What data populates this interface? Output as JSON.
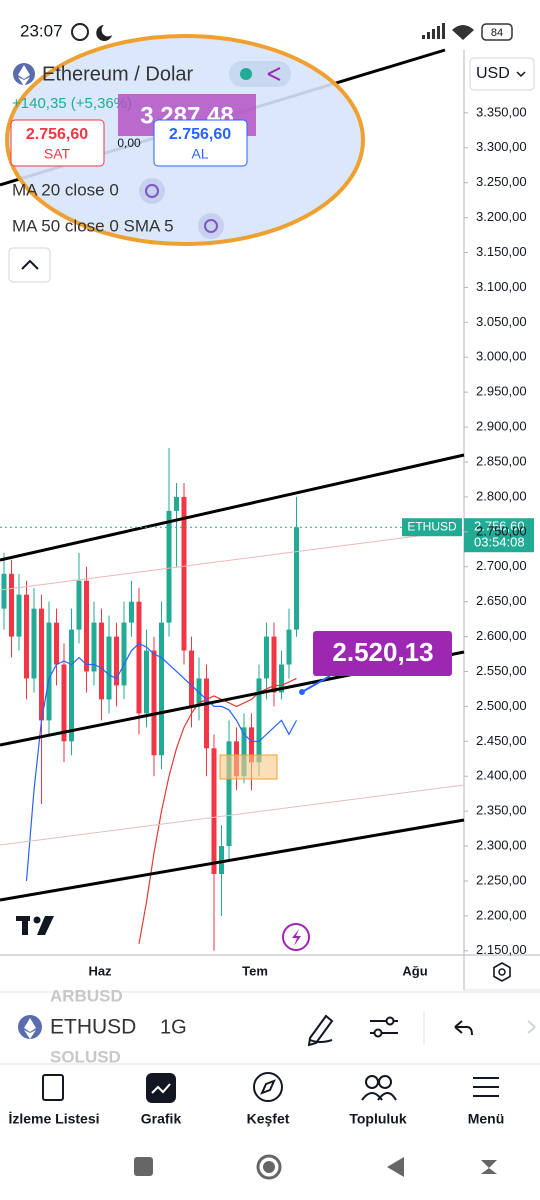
{
  "status": {
    "time": "23:07",
    "battery": "84"
  },
  "header": {
    "symbol_title": "Ethereum / Dolar",
    "change": "+140,35 (+5,36%)",
    "sell_price": "2.756,60",
    "sell_label": "SAT",
    "buy_price": "2.756,60",
    "buy_label": "AL",
    "spread": "0,00",
    "overlay_price": "3.287,48",
    "indicators": [
      "MA 20 close 0",
      "MA 50 close 0 SMA 5"
    ]
  },
  "currency": "USD",
  "chart_data": {
    "type": "candlestick",
    "ylim": [
      2144,
      3440
    ],
    "yticks": [
      {
        "value": 3350,
        "label": "3.350,00"
      },
      {
        "value": 3300,
        "label": "3.300,00"
      },
      {
        "value": 3250,
        "label": "3.250,00"
      },
      {
        "value": 3200,
        "label": "3.200,00"
      },
      {
        "value": 3150,
        "label": "3.150,00"
      },
      {
        "value": 3100,
        "label": "3.100,00"
      },
      {
        "value": 3050,
        "label": "3.050,00"
      },
      {
        "value": 3000,
        "label": "3.000,00"
      },
      {
        "value": 2950,
        "label": "2.950,00"
      },
      {
        "value": 2900,
        "label": "2.900,00"
      },
      {
        "value": 2850,
        "label": "2.850,00"
      },
      {
        "value": 2800,
        "label": "2.800,00"
      },
      {
        "value": 2750,
        "label": "2.750,00"
      },
      {
        "value": 2700,
        "label": "2.700,00"
      },
      {
        "value": 2650,
        "label": "2.650,00"
      },
      {
        "value": 2600,
        "label": "2.600,00"
      },
      {
        "value": 2550,
        "label": "2.550,00"
      },
      {
        "value": 2500,
        "label": "2.500,00"
      },
      {
        "value": 2450,
        "label": "2.450,00"
      },
      {
        "value": 2400,
        "label": "2.400,00"
      },
      {
        "value": 2350,
        "label": "2.350,00"
      },
      {
        "value": 2300,
        "label": "2.300,00"
      },
      {
        "value": 2250,
        "label": "2.250,00"
      },
      {
        "value": 2200,
        "label": "2.200,00"
      },
      {
        "value": 2150,
        "label": "2.150,00"
      }
    ],
    "up_color": "#22ab94",
    "down_color": "#f23645",
    "open": [
      2640,
      2690,
      2600,
      2660,
      2540,
      2640,
      2480,
      2620,
      2560,
      2450,
      2610,
      2680,
      2550,
      2620,
      2510,
      2600,
      2530,
      2620,
      2650,
      2490,
      2580,
      2430,
      2620,
      2780,
      2800,
      2580,
      2500,
      2540,
      2440,
      2260,
      2300,
      2450,
      2400,
      2470,
      2420,
      2540,
      2600,
      2520,
      2560,
      2610
    ],
    "high": [
      2720,
      2710,
      2690,
      2680,
      2670,
      2660,
      2650,
      2640,
      2590,
      2640,
      2720,
      2700,
      2650,
      2640,
      2630,
      2620,
      2650,
      2680,
      2670,
      2610,
      2600,
      2650,
      2870,
      2820,
      2820,
      2600,
      2570,
      2560,
      2460,
      2330,
      2480,
      2470,
      2490,
      2490,
      2560,
      2620,
      2620,
      2580,
      2640,
      2800
    ],
    "low": [
      2610,
      2570,
      2580,
      2510,
      2520,
      2360,
      2460,
      2530,
      2420,
      2430,
      2590,
      2520,
      2530,
      2480,
      2490,
      2500,
      2510,
      2600,
      2460,
      2470,
      2400,
      2410,
      2600,
      2700,
      2560,
      2470,
      2480,
      2400,
      2150,
      2200,
      2280,
      2380,
      2390,
      2380,
      2400,
      2510,
      2500,
      2510,
      2540,
      2600
    ],
    "close": [
      2690,
      2600,
      2660,
      2540,
      2640,
      2480,
      2620,
      2560,
      2450,
      2610,
      2680,
      2550,
      2620,
      2510,
      2600,
      2530,
      2620,
      2650,
      2490,
      2580,
      2430,
      2620,
      2780,
      2800,
      2580,
      2500,
      2540,
      2440,
      2260,
      2300,
      2450,
      2400,
      2470,
      2420,
      2540,
      2600,
      2520,
      2560,
      2610,
      2756.6
    ],
    "ma20": {
      "color": "#2962ff",
      "values": [
        null,
        null,
        null,
        2250,
        2380,
        2480,
        2540,
        2560,
        2565,
        2560,
        2570,
        2560,
        2560,
        2555,
        2545,
        2540,
        2560,
        2580,
        2590,
        2585,
        2575,
        2570,
        2560,
        2550,
        2540,
        2530,
        2520,
        2510,
        2500,
        2500,
        2495,
        2480,
        2460,
        2450,
        2450,
        2460,
        2470,
        2480,
        2460,
        2480
      ]
    },
    "ma50": {
      "color": "#e53935",
      "values": [
        null,
        null,
        null,
        null,
        null,
        null,
        null,
        null,
        null,
        null,
        null,
        null,
        null,
        null,
        null,
        null,
        null,
        null,
        2160,
        2220,
        2290,
        2350,
        2400,
        2440,
        2470,
        2490,
        2505,
        2510,
        2515,
        2510,
        2505,
        2500,
        2505,
        2510,
        2520,
        2525,
        2530,
        2530,
        2535,
        2540
      ]
    }
  },
  "price_tag": {
    "symbol": "ETHUSD",
    "price": "2.756,60",
    "countdown": "03:54:08"
  },
  "annotation": "2.520,13",
  "time_axis": [
    "Haz",
    "Tem",
    "Ağu"
  ],
  "toolbar": {
    "symbol": "ETHUSD",
    "interval": "1G",
    "prev_symbol": "ARBUSD",
    "next_symbol": "SOLUSD"
  },
  "nav": [
    "İzleme Listesi",
    "Grafik",
    "Keşfet",
    "Topluluk",
    "Menü"
  ]
}
